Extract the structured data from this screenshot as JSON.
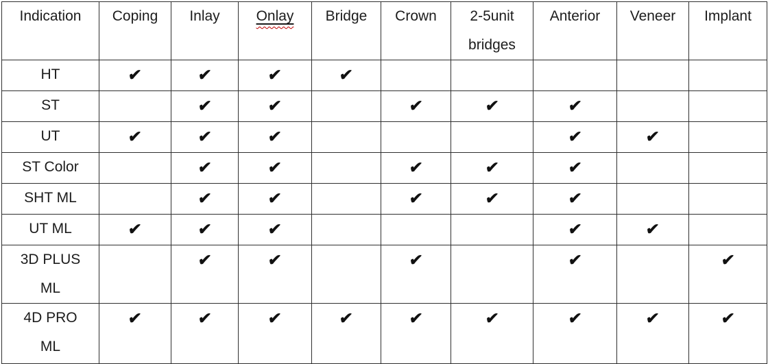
{
  "colors": {
    "text": "#1c1c1c",
    "border": "#2e2e2e",
    "background": "#ffffff",
    "check": "#111111",
    "squiggle_underline": "#c00000"
  },
  "table": {
    "check_glyph": "✔",
    "columns": [
      {
        "label": "Indication",
        "squiggle": false
      },
      {
        "label": "Coping",
        "squiggle": false
      },
      {
        "label": "Inlay",
        "squiggle": false
      },
      {
        "label": "Onlay",
        "squiggle": true
      },
      {
        "label": "Bridge",
        "squiggle": false
      },
      {
        "label": "Crown",
        "squiggle": false
      },
      {
        "label": "2-5unit\nbridges",
        "squiggle": false
      },
      {
        "label": "Anterior",
        "squiggle": false
      },
      {
        "label": "Veneer",
        "squiggle": false
      },
      {
        "label": "Implant",
        "squiggle": false
      }
    ],
    "rows": [
      {
        "indication": "HT",
        "checks": [
          1,
          1,
          1,
          1,
          0,
          0,
          0,
          0,
          0
        ]
      },
      {
        "indication": "ST",
        "checks": [
          0,
          1,
          1,
          0,
          1,
          1,
          1,
          0,
          0
        ]
      },
      {
        "indication": "UT",
        "checks": [
          1,
          1,
          1,
          0,
          0,
          0,
          1,
          1,
          0
        ]
      },
      {
        "indication": "ST Color",
        "checks": [
          0,
          1,
          1,
          0,
          1,
          1,
          1,
          0,
          0
        ]
      },
      {
        "indication": "SHT ML",
        "checks": [
          0,
          1,
          1,
          0,
          1,
          1,
          1,
          0,
          0
        ]
      },
      {
        "indication": "UT ML",
        "checks": [
          1,
          1,
          1,
          0,
          0,
          0,
          1,
          1,
          0
        ]
      },
      {
        "indication": "3D PLUS\nML",
        "checks": [
          0,
          1,
          1,
          0,
          1,
          0,
          1,
          0,
          1
        ]
      },
      {
        "indication": "4D PRO\nML",
        "checks": [
          1,
          1,
          1,
          1,
          1,
          1,
          1,
          1,
          1
        ]
      }
    ]
  }
}
